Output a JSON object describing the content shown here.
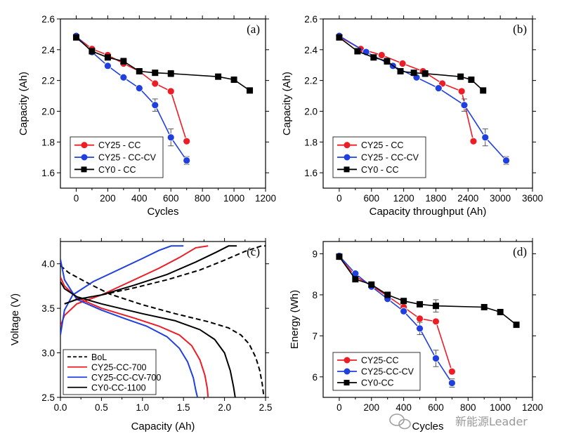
{
  "colors": {
    "red": "#ee1c25",
    "blue": "#1f3fe0",
    "black": "#000000"
  },
  "watermark": {
    "text": "新能源Leader",
    "icon": "wechat-bubbles-icon"
  },
  "chart_data": [
    {
      "id": "a",
      "panel_label": "(a)",
      "type": "line",
      "xlabel": "Cycles",
      "ylabel": "Capacity (Ah)",
      "xlim": [
        -100,
        1200
      ],
      "ylim": [
        1.5,
        2.6
      ],
      "xticks": [
        0,
        100,
        200,
        300,
        400,
        500,
        600,
        700,
        800,
        900,
        1000,
        1100,
        1200
      ],
      "xtick_labels": [
        "0",
        "200",
        "400",
        "600",
        "800",
        "1000",
        "1200"
      ],
      "yticks": [
        1.6,
        1.8,
        2.0,
        2.2,
        2.4,
        2.6
      ],
      "ytick_labels": [
        "1.6",
        "1.8",
        "2.0",
        "2.2",
        "2.4",
        "2.6"
      ],
      "legend_position": "bottom-left",
      "series": [
        {
          "name": "CY25 - CC",
          "color": "#ee1c25",
          "marker": "circle",
          "x": [
            0,
            100,
            200,
            300,
            400,
            500,
            600,
            700
          ],
          "y": [
            2.485,
            2.405,
            2.365,
            2.31,
            2.26,
            2.18,
            2.13,
            1.805
          ]
        },
        {
          "name": "CY25 - CC-CV",
          "color": "#1f3fe0",
          "marker": "circle",
          "x": [
            0,
            100,
            200,
            300,
            400,
            500,
            600,
            700
          ],
          "y": [
            2.49,
            2.385,
            2.295,
            2.22,
            2.15,
            2.04,
            1.83,
            1.68
          ],
          "err": [
            0,
            0,
            0,
            0,
            0,
            0.04,
            0.055,
            0.025
          ]
        },
        {
          "name": "CY0 - CC",
          "color": "#000000",
          "marker": "square",
          "x": [
            0,
            100,
            200,
            300,
            400,
            500,
            600,
            900,
            1000,
            1100
          ],
          "y": [
            2.48,
            2.39,
            2.35,
            2.325,
            2.26,
            2.25,
            2.245,
            2.225,
            2.205,
            2.135
          ],
          "err": [
            0,
            0,
            0,
            0.02,
            0,
            0,
            0.02,
            0,
            0,
            0
          ]
        }
      ]
    },
    {
      "id": "b",
      "panel_label": "(b)",
      "type": "line",
      "xlabel": "Capacity throughput (Ah)",
      "ylabel": "Capacity (Ah)",
      "xlim": [
        -300,
        3600
      ],
      "ylim": [
        1.5,
        2.6
      ],
      "xticks": [
        0,
        300,
        600,
        900,
        1200,
        1500,
        1800,
        2100,
        2400,
        2700,
        3000,
        3300,
        3600
      ],
      "xtick_labels": [
        "0",
        "600",
        "1200",
        "1800",
        "2400",
        "3000",
        "3600"
      ],
      "yticks": [
        1.6,
        1.8,
        2.0,
        2.2,
        2.4,
        2.6
      ],
      "ytick_labels": [
        "1.6",
        "1.8",
        "2.0",
        "2.2",
        "2.4",
        "2.6"
      ],
      "legend_position": "bottom-left",
      "series": [
        {
          "name": "CY25 - CC",
          "color": "#ee1c25",
          "marker": "circle",
          "x": [
            0,
            400,
            790,
            1180,
            1560,
            1920,
            2280,
            2500
          ],
          "y": [
            2.485,
            2.405,
            2.365,
            2.31,
            2.26,
            2.18,
            2.13,
            1.805
          ]
        },
        {
          "name": "CY25 - CC-CV",
          "color": "#1f3fe0",
          "marker": "circle",
          "x": [
            0,
            500,
            1000,
            1440,
            1850,
            2330,
            2720,
            3110
          ],
          "y": [
            2.49,
            2.385,
            2.295,
            2.22,
            2.15,
            2.04,
            1.83,
            1.68
          ],
          "err": [
            0,
            0,
            0,
            0,
            0,
            0.04,
            0.055,
            0.025
          ]
        },
        {
          "name": "CY0 - CC",
          "color": "#000000",
          "marker": "square",
          "x": [
            0,
            340,
            640,
            890,
            1140,
            1390,
            1600,
            2260,
            2460,
            2680
          ],
          "y": [
            2.48,
            2.39,
            2.35,
            2.325,
            2.26,
            2.25,
            2.245,
            2.225,
            2.205,
            2.135
          ],
          "err": [
            0,
            0,
            0,
            0.02,
            0,
            0,
            0.02,
            0,
            0,
            0
          ]
        }
      ]
    },
    {
      "id": "c",
      "panel_label": "(c)",
      "type": "line",
      "xlabel": "Capacity (Ah)",
      "ylabel": "Voltage (V)",
      "xlim": [
        0,
        2.5
      ],
      "ylim": [
        2.5,
        4.25
      ],
      "xticks": [
        0,
        0.25,
        0.5,
        0.75,
        1.0,
        1.25,
        1.5,
        1.75,
        2.0,
        2.25,
        2.5
      ],
      "xtick_labels": [
        "0.0",
        "0.5",
        "1.0",
        "1.5",
        "2.0",
        "2.5"
      ],
      "yticks": [
        2.5,
        3.0,
        3.5,
        4.0
      ],
      "ytick_labels": [
        "2.5",
        "3.0",
        "3.5",
        "4.0"
      ],
      "legend_position": "bottom-left",
      "series": [
        {
          "name": "BoL",
          "color": "#000000",
          "dash": true,
          "discharge": {
            "x": [
              0,
              0.1,
              0.3,
              0.6,
              1.0,
              1.4,
              1.8,
              2.05,
              2.2,
              2.3,
              2.38,
              2.43,
              2.46,
              2.48
            ],
            "y": [
              3.98,
              3.9,
              3.8,
              3.66,
              3.54,
              3.44,
              3.35,
              3.28,
              3.2,
              3.1,
              2.95,
              2.8,
              2.65,
              2.5
            ]
          },
          "charge": {
            "x": [
              0.05,
              0.2,
              0.5,
              0.9,
              1.3,
              1.7,
              2.0,
              2.25,
              2.45,
              2.5
            ],
            "y": [
              3.55,
              3.6,
              3.65,
              3.73,
              3.82,
              3.93,
              4.04,
              4.14,
              4.2,
              4.2
            ]
          }
        },
        {
          "name": "CY25-CC-700",
          "color": "#ee1c25",
          "discharge": {
            "x": [
              0,
              0.05,
              0.2,
              0.5,
              0.9,
              1.2,
              1.45,
              1.6,
              1.7,
              1.76,
              1.79,
              1.8
            ],
            "y": [
              3.85,
              3.75,
              3.62,
              3.5,
              3.39,
              3.3,
              3.2,
              3.08,
              2.92,
              2.75,
              2.6,
              2.5
            ]
          },
          "charge": {
            "x": [
              0,
              0.05,
              0.2,
              0.5,
              0.9,
              1.2,
              1.45,
              1.65,
              1.8
            ],
            "y": [
              3.3,
              3.42,
              3.55,
              3.65,
              3.82,
              3.95,
              4.07,
              4.18,
              4.2
            ]
          }
        },
        {
          "name": "CY25-CC-CV-700",
          "color": "#1f3fe0",
          "discharge": {
            "x": [
              0,
              0.05,
              0.2,
              0.5,
              0.8,
              1.05,
              1.3,
              1.45,
              1.55,
              1.62,
              1.65,
              1.67
            ],
            "y": [
              4.05,
              3.82,
              3.6,
              3.48,
              3.38,
              3.3,
              3.18,
              3.05,
              2.9,
              2.72,
              2.58,
              2.5
            ]
          },
          "charge": {
            "x": [
              0,
              0.05,
              0.15,
              0.4,
              0.7,
              1.0,
              1.2,
              1.35,
              1.5
            ],
            "y": [
              3.2,
              3.48,
              3.65,
              3.8,
              3.93,
              4.06,
              4.15,
              4.2,
              4.2
            ]
          }
        },
        {
          "name": "CY0-CC-1100",
          "color": "#000000",
          "discharge": {
            "x": [
              0,
              0.05,
              0.2,
              0.5,
              1.0,
              1.4,
              1.7,
              1.88,
              2.0,
              2.07,
              2.11,
              2.13
            ],
            "y": [
              3.8,
              3.72,
              3.63,
              3.55,
              3.44,
              3.36,
              3.26,
              3.15,
              3.0,
              2.8,
              2.62,
              2.5
            ]
          },
          "charge": {
            "x": [
              0.05,
              0.2,
              0.5,
              0.9,
              1.3,
              1.65,
              1.9,
              2.05,
              2.15
            ],
            "y": [
              3.55,
              3.6,
              3.65,
              3.76,
              3.88,
              4.02,
              4.13,
              4.2,
              4.2
            ]
          }
        }
      ]
    },
    {
      "id": "d",
      "panel_label": "(d)",
      "type": "line",
      "xlabel": "Cycles",
      "ylabel": "Energy (Wh)",
      "xlim": [
        -100,
        1200
      ],
      "ylim": [
        5.5,
        9.3
      ],
      "xticks": [
        0,
        100,
        200,
        300,
        400,
        500,
        600,
        700,
        800,
        900,
        1000,
        1100,
        1200
      ],
      "xtick_labels": [
        "0",
        "200",
        "400",
        "600",
        "800",
        "1000",
        "1200"
      ],
      "yticks": [
        6,
        7,
        8,
        9
      ],
      "ytick_labels": [
        "6",
        "7",
        "8",
        "9"
      ],
      "legend_position": "bottom-left",
      "series": [
        {
          "name": "CY25-CC",
          "color": "#ee1c25",
          "marker": "circle",
          "x": [
            0,
            100,
            200,
            300,
            400,
            500,
            600,
            700
          ],
          "y": [
            8.93,
            8.45,
            8.22,
            7.97,
            7.7,
            7.42,
            7.35,
            6.13
          ]
        },
        {
          "name": "CY25-CC-CV",
          "color": "#1f3fe0",
          "marker": "circle",
          "x": [
            0,
            100,
            200,
            300,
            400,
            500,
            600,
            700
          ],
          "y": [
            8.95,
            8.52,
            8.2,
            7.9,
            7.6,
            7.18,
            6.45,
            5.85
          ],
          "err": [
            0,
            0,
            0,
            0,
            0,
            0.15,
            0.2,
            0.1
          ]
        },
        {
          "name": "CY0-CC",
          "color": "#000000",
          "marker": "square",
          "x": [
            0,
            100,
            200,
            300,
            400,
            500,
            600,
            900,
            1000,
            1100
          ],
          "y": [
            8.93,
            8.38,
            8.25,
            8.0,
            7.85,
            7.77,
            7.73,
            7.7,
            7.58,
            7.27
          ],
          "err": [
            0,
            0,
            0,
            0.05,
            0,
            0,
            0.15,
            0,
            0,
            0
          ]
        }
      ]
    }
  ]
}
